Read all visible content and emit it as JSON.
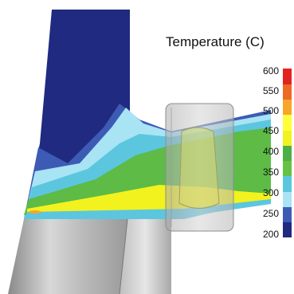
{
  "legend": {
    "title": "Temperature (C)",
    "ticks": [
      "600",
      "550",
      "500",
      "450",
      "400",
      "350",
      "300",
      "250",
      "200"
    ],
    "colors": [
      "#1f2a80",
      "#3d5bb5",
      "#a8e4f4",
      "#5cc6df",
      "#66c244",
      "#4daf45",
      "#f2f21e",
      "#ffff3a",
      "#f9a42b",
      "#ee6a24",
      "#e3231f"
    ]
  },
  "palette": {
    "blue_dark": "#1f2a80",
    "blue_mid": "#3d5bb5",
    "cyan_light": "#a8e4f4",
    "cyan": "#5cc6df",
    "green": "#5dbb46",
    "yellow": "#f2f21e",
    "orange": "#f9a42b",
    "red": "#e3231f",
    "tool_gray": "#c8c8c8"
  }
}
